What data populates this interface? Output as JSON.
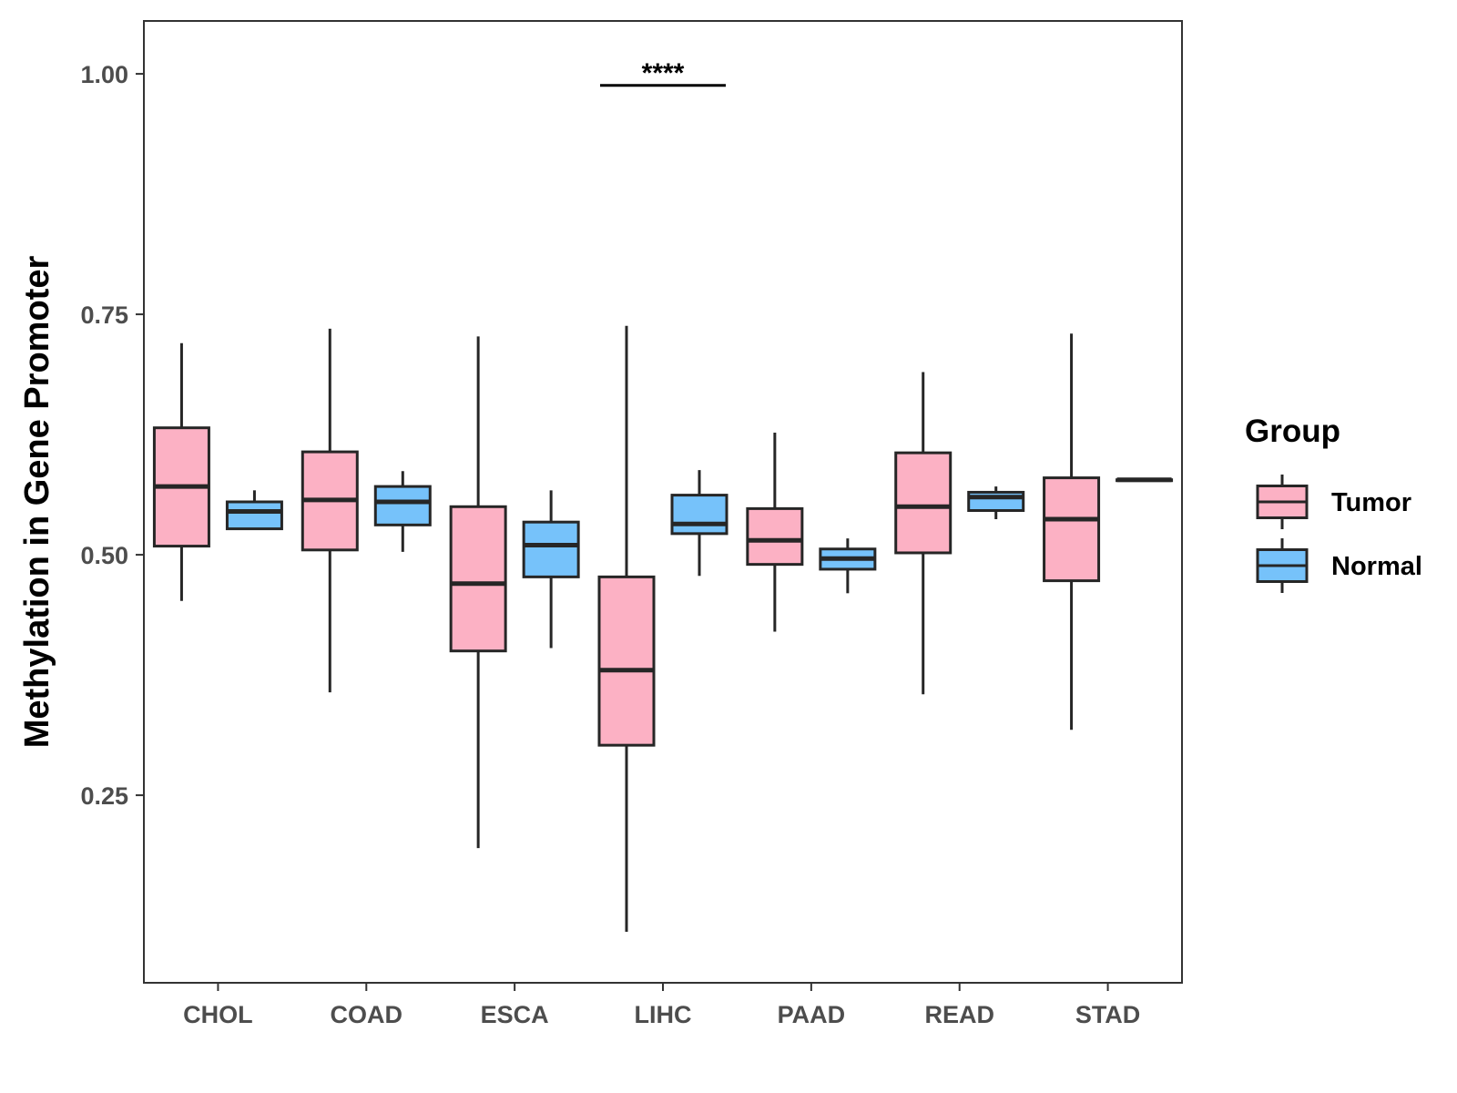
{
  "chart_data": {
    "type": "boxplot",
    "title": "",
    "xlabel": "",
    "ylabel": "Methylation in Gene Promoter",
    "ylim": [
      0.055,
      1.055
    ],
    "yticks": [
      0.25,
      0.5,
      0.75,
      1.0
    ],
    "ytick_labels": [
      "0.25",
      "0.50",
      "0.75",
      "1.00"
    ],
    "categories": [
      "CHOL",
      "COAD",
      "ESCA",
      "LIHC",
      "PAAD",
      "READ",
      "STAD"
    ],
    "grid": false,
    "legend": {
      "title": "Group",
      "position": "right",
      "entries": [
        {
          "name": "Tumor",
          "color": "#fcb1c4"
        },
        {
          "name": "Normal",
          "color": "#76c2fa"
        }
      ]
    },
    "series": [
      {
        "name": "Tumor",
        "color": "#fcb1c4",
        "boxes": [
          {
            "category": "CHOL",
            "min": 0.452,
            "q1": 0.509,
            "median": 0.571,
            "q3": 0.632,
            "max": 0.72
          },
          {
            "category": "COAD",
            "min": 0.357,
            "q1": 0.505,
            "median": 0.557,
            "q3": 0.607,
            "max": 0.735
          },
          {
            "category": "ESCA",
            "min": 0.195,
            "q1": 0.4,
            "median": 0.47,
            "q3": 0.55,
            "max": 0.727
          },
          {
            "category": "LIHC",
            "min": 0.108,
            "q1": 0.302,
            "median": 0.38,
            "q3": 0.477,
            "max": 0.738
          },
          {
            "category": "PAAD",
            "min": 0.42,
            "q1": 0.49,
            "median": 0.515,
            "q3": 0.548,
            "max": 0.627
          },
          {
            "category": "READ",
            "min": 0.355,
            "q1": 0.502,
            "median": 0.55,
            "q3": 0.606,
            "max": 0.69
          },
          {
            "category": "STAD",
            "min": 0.318,
            "q1": 0.473,
            "median": 0.537,
            "q3": 0.58,
            "max": 0.73
          }
        ]
      },
      {
        "name": "Normal",
        "color": "#76c2fa",
        "boxes": [
          {
            "category": "CHOL",
            "min": 0.526,
            "q1": 0.527,
            "median": 0.545,
            "q3": 0.555,
            "max": 0.567
          },
          {
            "category": "COAD",
            "min": 0.503,
            "q1": 0.531,
            "median": 0.555,
            "q3": 0.571,
            "max": 0.587
          },
          {
            "category": "ESCA",
            "min": 0.403,
            "q1": 0.477,
            "median": 0.51,
            "q3": 0.534,
            "max": 0.567
          },
          {
            "category": "LIHC",
            "min": 0.478,
            "q1": 0.522,
            "median": 0.532,
            "q3": 0.562,
            "max": 0.588
          },
          {
            "category": "PAAD",
            "min": 0.46,
            "q1": 0.485,
            "median": 0.496,
            "q3": 0.506,
            "max": 0.517
          },
          {
            "category": "READ",
            "min": 0.537,
            "q1": 0.546,
            "median": 0.56,
            "q3": 0.565,
            "max": 0.571
          },
          {
            "category": "STAD",
            "min": 0.578,
            "q1": 0.578,
            "median": 0.578,
            "q3": 0.578,
            "max": 0.578
          }
        ]
      }
    ],
    "annotations": [
      {
        "type": "significance",
        "category": "LIHC",
        "label": "****",
        "y": 0.988
      }
    ]
  }
}
